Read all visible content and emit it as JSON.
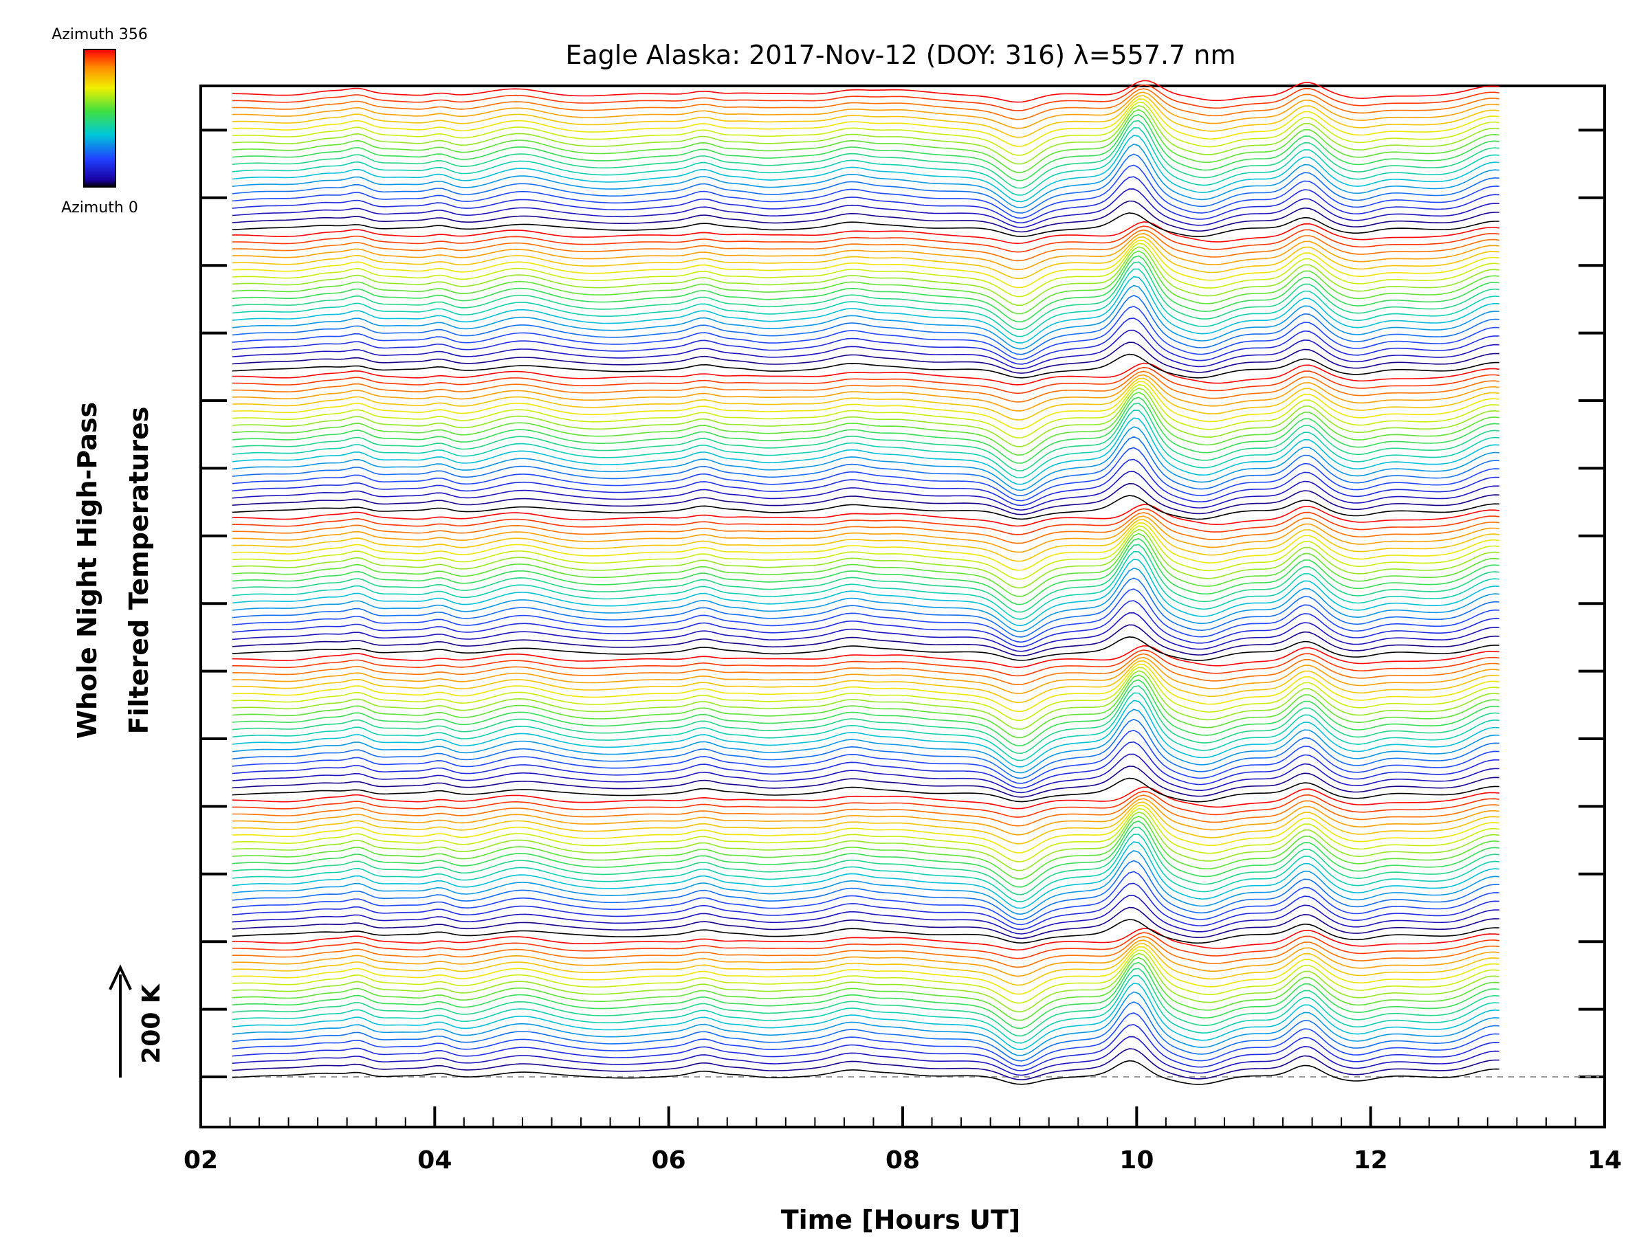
{
  "chart_data": {
    "type": "line",
    "title": "Eagle Alaska: 2017-Nov-12 (DOY: 316) λ=557.7 nm",
    "xlabel": "Time [Hours UT]",
    "ylabel_line1": "Whole Night High-Pass",
    "ylabel_line2": "Filtered Temperatures",
    "xlim": [
      2,
      14
    ],
    "x_ticks": [
      "02",
      "04",
      "06",
      "08",
      "10",
      "12",
      "14"
    ],
    "x_start": 2.27,
    "x_end": 13.1,
    "scale_bar_label": "200 K",
    "colorbar": {
      "top_label": "Azimuth  356",
      "bottom_label": "Azimuth  0",
      "min": 0,
      "max": 356,
      "colormap": "rainbow"
    },
    "n_traces": 140,
    "azimuth_cycles": 7,
    "grid": false,
    "baseline_dashed": true,
    "colors": {
      "axis": "#000000",
      "baseline": "#999999",
      "background": "#ffffff"
    }
  }
}
